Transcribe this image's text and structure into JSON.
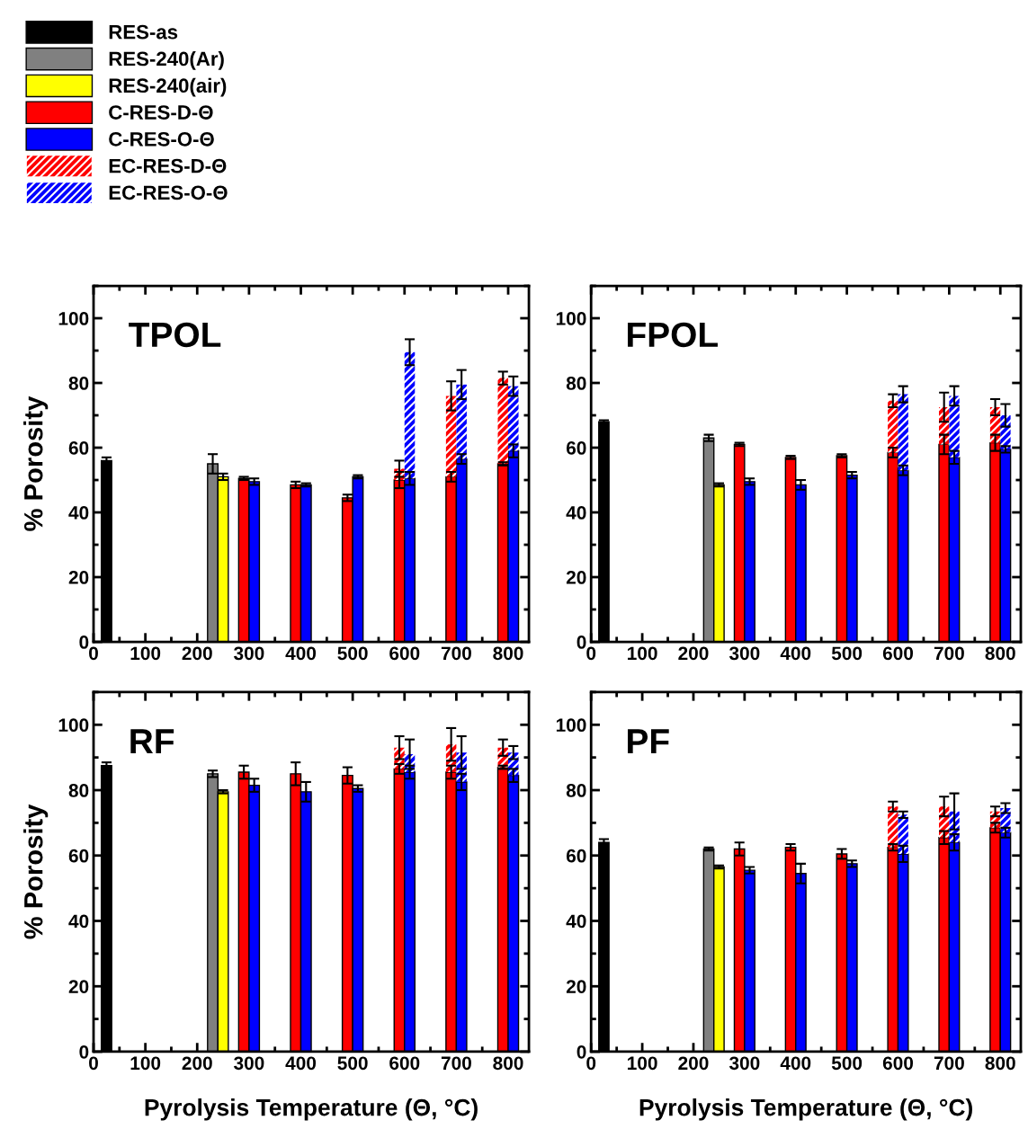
{
  "chart_data": [
    {
      "type": "bar",
      "title": "TPOL",
      "ylabel": "% Porosity",
      "legend": "top left",
      "xlim": [
        0,
        840
      ],
      "xticks": [
        0,
        100,
        200,
        300,
        400,
        500,
        600,
        700,
        800
      ],
      "ylim": [
        0,
        110
      ],
      "yticks": [
        0,
        20,
        40,
        60,
        80,
        100
      ],
      "series": [
        {
          "name": "RES-as",
          "color": "#000000",
          "x": [
            25
          ],
          "values": [
            56
          ],
          "errors": [
            1
          ]
        },
        {
          "name": "RES-240(Ar)",
          "color": "#808080",
          "x": [
            230
          ],
          "values": [
            55
          ],
          "errors": [
            3
          ]
        },
        {
          "name": "RES-240(air)",
          "color": "#ffff00",
          "x": [
            250
          ],
          "values": [
            51
          ],
          "errors": [
            1
          ]
        },
        {
          "name": "C-RES-D-Θ",
          "color": "#ff0000",
          "x": [
            290,
            390,
            490,
            590,
            690,
            790
          ],
          "values": [
            50.5,
            48.5,
            44.5,
            50,
            51,
            55
          ],
          "errors": [
            0.5,
            1,
            1,
            2.5,
            1.5,
            0.5
          ]
        },
        {
          "name": "C-RES-O-Θ",
          "color": "#0000ff",
          "x": [
            310,
            410,
            510,
            610,
            710,
            810
          ],
          "values": [
            49.5,
            48.5,
            51,
            50.5,
            56.5,
            59
          ],
          "errors": [
            1,
            0.5,
            0.5,
            2,
            1.5,
            2
          ]
        },
        {
          "name": "EC-RES-D-Θ",
          "color": "#ff0000",
          "x": [
            590,
            690,
            790
          ],
          "base": [
            50,
            51,
            55
          ],
          "values": [
            3.5,
            25,
            26.5
          ],
          "errors": [
            2.5,
            4.5,
            2
          ]
        },
        {
          "name": "EC-RES-O-Θ",
          "color": "#0000ff",
          "x": [
            610,
            710,
            810
          ],
          "base": [
            50.5,
            56.5,
            59
          ],
          "values": [
            39,
            23,
            20
          ],
          "errors": [
            4,
            4.5,
            3
          ]
        }
      ]
    },
    {
      "type": "bar",
      "title": "FPOL",
      "xlim": [
        0,
        840
      ],
      "xticks": [
        0,
        100,
        200,
        300,
        400,
        500,
        600,
        700,
        800
      ],
      "ylim": [
        0,
        110
      ],
      "yticks": [
        0,
        20,
        40,
        60,
        80,
        100
      ],
      "series": [
        {
          "color": "#000000",
          "x": [
            25
          ],
          "values": [
            68
          ],
          "errors": [
            0.5
          ]
        },
        {
          "color": "#808080",
          "x": [
            230
          ],
          "values": [
            63
          ],
          "errors": [
            1
          ]
        },
        {
          "color": "#ffff00",
          "x": [
            250
          ],
          "values": [
            48.5
          ],
          "errors": [
            0.5
          ]
        },
        {
          "color": "#ff0000",
          "x": [
            290,
            390,
            490,
            590,
            690,
            790
          ],
          "values": [
            61,
            57,
            57.5,
            58.5,
            61,
            61.5
          ],
          "errors": [
            0.5,
            0.5,
            0.5,
            1.5,
            3,
            2.5
          ]
        },
        {
          "color": "#0000ff",
          "x": [
            310,
            410,
            510,
            610,
            710,
            810
          ],
          "values": [
            49.5,
            48.5,
            51.5,
            53,
            57,
            59.5
          ],
          "errors": [
            1,
            1.5,
            1,
            1.5,
            2,
            1
          ]
        },
        {
          "color": "#ff0000",
          "x": [
            590,
            690,
            790
          ],
          "base": [
            58.5,
            61,
            61.5
          ],
          "values": [
            16,
            11.5,
            11
          ],
          "errors": [
            2,
            4.5,
            2.5
          ]
        },
        {
          "color": "#0000ff",
          "x": [
            610,
            710,
            810
          ],
          "base": [
            53,
            57,
            59.5
          ],
          "values": [
            23.5,
            19,
            10.5
          ],
          "errors": [
            2.5,
            3,
            3.5
          ]
        }
      ]
    },
    {
      "type": "bar",
      "title": "RF",
      "ylabel": "% Porosity",
      "xlabel": "Pyrolysis Temperature (Θ, °C)",
      "xlim": [
        0,
        840
      ],
      "xticks": [
        0,
        100,
        200,
        300,
        400,
        500,
        600,
        700,
        800
      ],
      "ylim": [
        0,
        110
      ],
      "yticks": [
        0,
        20,
        40,
        60,
        80,
        100
      ],
      "series": [
        {
          "color": "#000000",
          "x": [
            25
          ],
          "values": [
            87.5
          ],
          "errors": [
            1
          ]
        },
        {
          "color": "#808080",
          "x": [
            230
          ],
          "values": [
            85
          ],
          "errors": [
            1
          ]
        },
        {
          "color": "#ffff00",
          "x": [
            250
          ],
          "values": [
            79.5
          ],
          "errors": [
            0.5
          ]
        },
        {
          "color": "#ff0000",
          "x": [
            290,
            390,
            490,
            590,
            690,
            790
          ],
          "values": [
            85.5,
            85,
            84.5,
            86.5,
            85.5,
            87
          ],
          "errors": [
            2,
            3.5,
            2.5,
            1.5,
            2,
            0.5
          ]
        },
        {
          "color": "#0000ff",
          "x": [
            310,
            410,
            510,
            610,
            710,
            810
          ],
          "values": [
            81.5,
            79.5,
            80.5,
            85.5,
            82.5,
            84.5
          ],
          "errors": [
            2,
            3,
            1,
            2,
            2.5,
            2
          ]
        },
        {
          "color": "#ff0000",
          "x": [
            590,
            690,
            790
          ],
          "base": [
            86.5,
            85.5,
            87
          ],
          "values": [
            6.5,
            8.5,
            6
          ],
          "errors": [
            3.5,
            5,
            2.5
          ]
        },
        {
          "color": "#0000ff",
          "x": [
            610,
            710,
            810
          ],
          "base": [
            85.5,
            82.5,
            84.5
          ],
          "values": [
            5.5,
            9,
            7
          ],
          "errors": [
            4.5,
            5,
            2
          ]
        }
      ]
    },
    {
      "type": "bar",
      "title": "PF",
      "xlabel": "Pyrolysis Temperature (Θ, °C)",
      "xlim": [
        0,
        840
      ],
      "xticks": [
        0,
        100,
        200,
        300,
        400,
        500,
        600,
        700,
        800
      ],
      "ylim": [
        0,
        110
      ],
      "yticks": [
        0,
        20,
        40,
        60,
        80,
        100
      ],
      "series": [
        {
          "color": "#000000",
          "x": [
            25
          ],
          "values": [
            64
          ],
          "errors": [
            1
          ]
        },
        {
          "color": "#808080",
          "x": [
            230
          ],
          "values": [
            62
          ],
          "errors": [
            0.5
          ]
        },
        {
          "color": "#ffff00",
          "x": [
            250
          ],
          "values": [
            56.5
          ],
          "errors": [
            0.5
          ]
        },
        {
          "color": "#ff0000",
          "x": [
            290,
            390,
            490,
            590,
            690,
            790
          ],
          "values": [
            62,
            62.5,
            60.5,
            62.5,
            65.5,
            68.5
          ],
          "errors": [
            2,
            1,
            1.5,
            1,
            2,
            1.5
          ]
        },
        {
          "color": "#0000ff",
          "x": [
            310,
            410,
            510,
            610,
            710,
            810
          ],
          "values": [
            55.5,
            54.5,
            57.5,
            60.5,
            64,
            67
          ],
          "errors": [
            1,
            3,
            1,
            2.5,
            2.5,
            1.5
          ]
        },
        {
          "color": "#ff0000",
          "x": [
            590,
            690,
            790
          ],
          "base": [
            62.5,
            65.5,
            68.5
          ],
          "values": [
            12.5,
            9.5,
            5
          ],
          "errors": [
            1.5,
            3,
            1.5
          ]
        },
        {
          "color": "#0000ff",
          "x": [
            610,
            710,
            810
          ],
          "base": [
            60.5,
            64,
            67
          ],
          "values": [
            12,
            9.5,
            7.5
          ],
          "errors": [
            1,
            5.5,
            1.5
          ]
        }
      ]
    }
  ]
}
